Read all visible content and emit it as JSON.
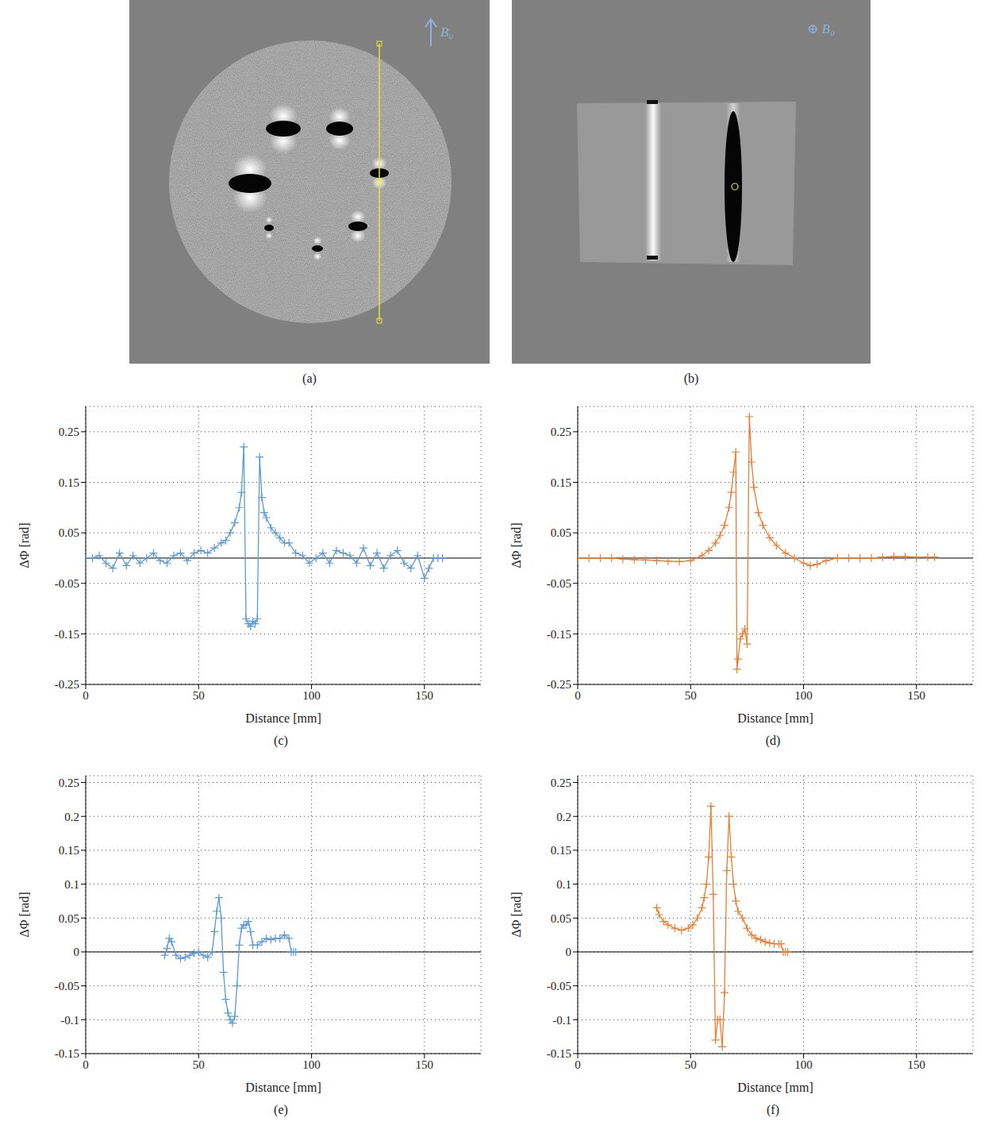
{
  "images": [
    {
      "caption": "(a)",
      "label": "B₀"
    },
    {
      "caption": "(b)",
      "label": "⊕ B₀"
    }
  ],
  "chart_data": [
    {
      "type": "line",
      "caption": "(c)",
      "x_label": "Distance [mm]",
      "y_label": "ΔΦ [rad]",
      "color": "#5b9bd5",
      "marker": "plus",
      "grid": true,
      "xlim": [
        0,
        175
      ],
      "xticks": [
        0,
        50,
        100,
        150
      ],
      "ylim": [
        -0.25,
        0.3
      ],
      "yticks": [
        -0.25,
        -0.15,
        -0.05,
        0.05,
        0.15,
        0.25
      ],
      "x": [
        0,
        3,
        6,
        9,
        12,
        15,
        18,
        21,
        24,
        27,
        30,
        33,
        36,
        39,
        42,
        45,
        48,
        51,
        54,
        57,
        60,
        62,
        64,
        66,
        68,
        69,
        70,
        71,
        72,
        73,
        74,
        75,
        76,
        77,
        78,
        79,
        80,
        82,
        84,
        86,
        88,
        90,
        93,
        96,
        99,
        102,
        105,
        108,
        111,
        114,
        117,
        120,
        123,
        126,
        129,
        132,
        135,
        138,
        141,
        144,
        147,
        150,
        152,
        154,
        156,
        158
      ],
      "values": [
        0,
        0,
        0.005,
        -0.01,
        -0.02,
        0.01,
        -0.015,
        0.005,
        -0.01,
        0,
        0.01,
        -0.005,
        -0.01,
        0.005,
        0.01,
        -0.005,
        0.01,
        0.015,
        0.01,
        0.02,
        0.03,
        0.035,
        0.05,
        0.07,
        0.1,
        0.13,
        0.22,
        -0.12,
        -0.13,
        -0.135,
        -0.125,
        -0.13,
        -0.12,
        0.2,
        0.12,
        0.09,
        0.08,
        0.06,
        0.05,
        0.04,
        0.03,
        0.03,
        0.01,
        0.005,
        -0.01,
        0,
        0.01,
        -0.01,
        0.015,
        0.01,
        0.005,
        -0.01,
        0.02,
        -0.015,
        0.01,
        -0.02,
        0.005,
        0.015,
        -0.01,
        -0.02,
        0.005,
        -0.04,
        -0.02,
        0,
        0,
        0
      ]
    },
    {
      "type": "line",
      "caption": "(d)",
      "x_label": "Distance [mm]",
      "y_label": "ΔΦ [rad]",
      "color": "#ed7d31",
      "marker": "plus",
      "grid": true,
      "xlim": [
        0,
        175
      ],
      "xticks": [
        0,
        50,
        100,
        150
      ],
      "ylim": [
        -0.25,
        0.3
      ],
      "yticks": [
        -0.25,
        -0.15,
        -0.05,
        0.05,
        0.15,
        0.25
      ],
      "x": [
        0,
        5,
        10,
        15,
        20,
        25,
        30,
        35,
        40,
        45,
        50,
        55,
        58,
        61,
        63,
        65,
        67,
        68,
        69,
        70,
        70.5,
        71,
        72,
        73,
        74,
        75,
        76,
        77,
        78,
        80,
        82,
        85,
        88,
        92,
        96,
        100,
        103,
        106,
        110,
        115,
        120,
        125,
        130,
        135,
        140,
        145,
        150,
        155,
        158
      ],
      "values": [
        0,
        0,
        0,
        0,
        -0.002,
        -0.003,
        -0.004,
        -0.005,
        -0.006,
        -0.007,
        -0.005,
        0.005,
        0.015,
        0.03,
        0.045,
        0.065,
        0.1,
        0.13,
        0.17,
        0.21,
        -0.22,
        -0.2,
        -0.16,
        -0.15,
        -0.14,
        -0.17,
        0.28,
        0.19,
        0.14,
        0.09,
        0.065,
        0.04,
        0.025,
        0.01,
        0,
        -0.01,
        -0.015,
        -0.012,
        -0.005,
        0,
        0,
        0,
        0,
        0.002,
        0.003,
        0.003,
        0.002,
        0.002,
        0.002
      ]
    },
    {
      "type": "line",
      "caption": "(e)",
      "x_label": "Distance [mm]",
      "y_label": "ΔΦ [rad]",
      "color": "#5b9bd5",
      "marker": "plus",
      "grid": true,
      "xlim": [
        0,
        175
      ],
      "xticks": [
        0,
        50,
        100,
        150
      ],
      "ylim": [
        -0.15,
        0.26
      ],
      "yticks": [
        -0.15,
        -0.1,
        -0.05,
        0,
        0.05,
        0.1,
        0.15,
        0.2,
        0.25
      ],
      "x": [
        35,
        36,
        37,
        38,
        40,
        42,
        44,
        46,
        48,
        50,
        52,
        54,
        56,
        57,
        58,
        59,
        60,
        61,
        62,
        63,
        64,
        65,
        66,
        67,
        68,
        69,
        70,
        71,
        72,
        73,
        74,
        76,
        78,
        80,
        82,
        84,
        86,
        88,
        90,
        91,
        92,
        93
      ],
      "values": [
        -0.005,
        0.005,
        0.02,
        0.015,
        -0.005,
        -0.01,
        -0.008,
        -0.005,
        -0.002,
        0,
        -0.005,
        -0.008,
        0,
        0.03,
        0.06,
        0.08,
        0.05,
        -0.03,
        -0.07,
        -0.09,
        -0.1,
        -0.105,
        -0.095,
        -0.05,
        0.01,
        0.035,
        0.04,
        0.04,
        0.045,
        0.03,
        0.01,
        0.01,
        0.015,
        0.02,
        0.018,
        0.02,
        0.02,
        0.025,
        0.02,
        0,
        0,
        0
      ]
    },
    {
      "type": "line",
      "caption": "(f)",
      "x_label": "Distance [mm]",
      "y_label": "ΔΦ [rad]",
      "color": "#ed7d31",
      "marker": "plus",
      "grid": true,
      "xlim": [
        0,
        175
      ],
      "xticks": [
        0,
        50,
        100,
        150
      ],
      "ylim": [
        -0.15,
        0.26
      ],
      "yticks": [
        -0.15,
        -0.1,
        -0.05,
        0,
        0.05,
        0.1,
        0.15,
        0.2,
        0.25
      ],
      "x": [
        35,
        36,
        38,
        40,
        43,
        46,
        49,
        51,
        53,
        55,
        56,
        57,
        58,
        59,
        60,
        61,
        62,
        63,
        64,
        65,
        66,
        67,
        68,
        69,
        70,
        71,
        73,
        75,
        77,
        79,
        81,
        83,
        85,
        87,
        89,
        90,
        91,
        92,
        93
      ],
      "values": [
        0.065,
        0.055,
        0.045,
        0.04,
        0.035,
        0.032,
        0.035,
        0.04,
        0.05,
        0.065,
        0.08,
        0.1,
        0.14,
        0.215,
        0.085,
        -0.13,
        -0.1,
        -0.1,
        -0.14,
        -0.06,
        0.12,
        0.2,
        0.14,
        0.1,
        0.075,
        0.06,
        0.05,
        0.035,
        0.025,
        0.02,
        0.018,
        0.015,
        0.013,
        0.012,
        0.012,
        0.012,
        0,
        0,
        0
      ]
    }
  ]
}
